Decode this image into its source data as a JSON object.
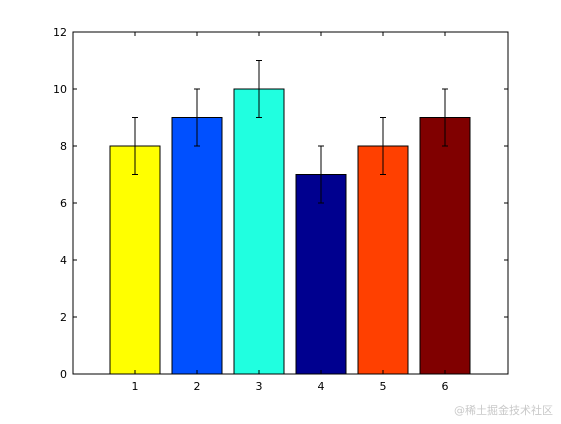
{
  "chart_data": {
    "type": "bar",
    "categories": [
      "1",
      "2",
      "3",
      "4",
      "5",
      "6"
    ],
    "values": [
      8,
      9,
      10,
      7,
      8,
      9
    ],
    "error": [
      1,
      1,
      1,
      1,
      1,
      1
    ],
    "colors": [
      "#ffff00",
      "#0050ff",
      "#20ffe0",
      "#00008f",
      "#ff4000",
      "#800000"
    ],
    "yticks": [
      0,
      2,
      4,
      6,
      8,
      10,
      12
    ],
    "ylim": [
      0,
      12
    ],
    "title": "",
    "xlabel": "",
    "ylabel": "",
    "grid": false
  },
  "watermark": "@稀土掘金技术社区"
}
